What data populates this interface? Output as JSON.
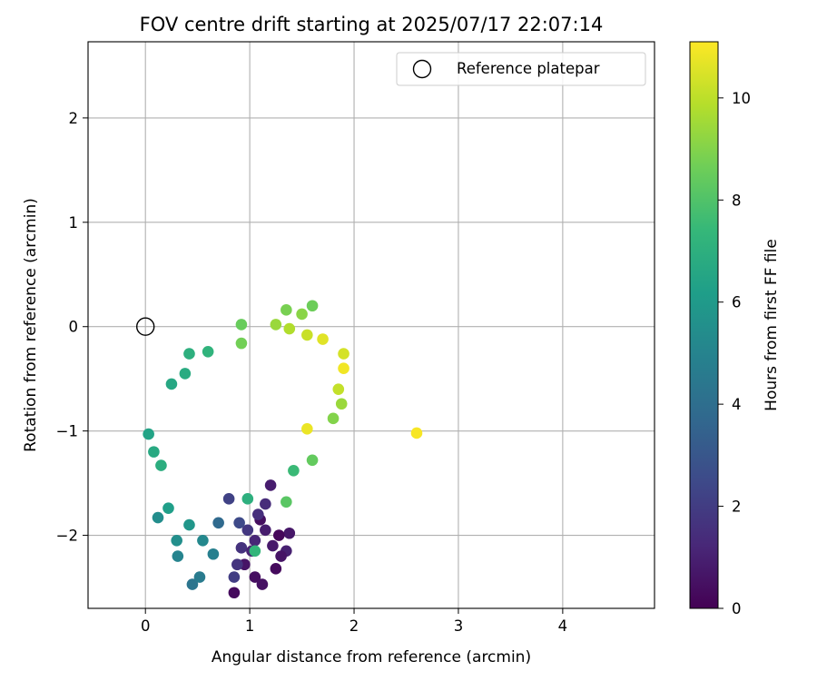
{
  "chart_data": {
    "type": "scatter",
    "title": "FOV centre drift starting at 2025/07/17 22:07:14",
    "xlabel": "Angular distance from reference (arcmin)",
    "ylabel": "Rotation from reference (arcmin)",
    "xlim": [
      -0.55,
      4.88
    ],
    "ylim": [
      -2.7,
      2.73
    ],
    "xticks": [
      0,
      1,
      2,
      3,
      4
    ],
    "yticks": [
      -2,
      -1,
      0,
      1,
      2
    ],
    "xtick_labels": [
      "0",
      "1",
      "2",
      "3",
      "4"
    ],
    "ytick_labels": [
      "−2",
      "−1",
      "0",
      "1",
      "2"
    ],
    "grid": true,
    "legend": {
      "position": "top-right",
      "entries": [
        {
          "label": "Reference platepar",
          "marker": "open-circle",
          "color": "#000000"
        }
      ]
    },
    "reference_point": {
      "x": 0,
      "y": 0
    },
    "colorbar": {
      "label": "Hours from first FF file",
      "range": [
        0,
        11.1
      ],
      "ticks": [
        0,
        2,
        4,
        6,
        8,
        10
      ],
      "tick_labels": [
        "0",
        "2",
        "4",
        "6",
        "8",
        "10"
      ],
      "colormap": "viridis",
      "colormap_stops": [
        "#440154",
        "#482878",
        "#3e4989",
        "#31688e",
        "#26828e",
        "#1f9e89",
        "#35b779",
        "#6ece58",
        "#b5de2b",
        "#fde725"
      ]
    },
    "series": [
      {
        "color_variable": "Hours from first FF file",
        "points": [
          {
            "x": 0.85,
            "y": -2.55,
            "c": 0.3
          },
          {
            "x": 0.95,
            "y": -2.28,
            "c": 0.6
          },
          {
            "x": 1.05,
            "y": -2.4,
            "c": 0.4
          },
          {
            "x": 1.12,
            "y": -2.47,
            "c": 0.5
          },
          {
            "x": 1.25,
            "y": -2.32,
            "c": 0.3
          },
          {
            "x": 1.22,
            "y": -2.1,
            "c": 0.8
          },
          {
            "x": 1.35,
            "y": -2.15,
            "c": 1.0
          },
          {
            "x": 1.38,
            "y": -1.98,
            "c": 0.7
          },
          {
            "x": 1.28,
            "y": -2.0,
            "c": 0.2
          },
          {
            "x": 1.1,
            "y": -1.85,
            "c": 0.4
          },
          {
            "x": 1.05,
            "y": -2.05,
            "c": 1.2
          },
          {
            "x": 0.92,
            "y": -2.12,
            "c": 1.6
          },
          {
            "x": 0.98,
            "y": -1.95,
            "c": 1.8
          },
          {
            "x": 1.15,
            "y": -1.7,
            "c": 1.4
          },
          {
            "x": 1.2,
            "y": -1.52,
            "c": 0.9
          },
          {
            "x": 0.8,
            "y": -1.65,
            "c": 2.2
          },
          {
            "x": 0.9,
            "y": -1.88,
            "c": 2.5
          },
          {
            "x": 0.85,
            "y": -2.4,
            "c": 2.0
          },
          {
            "x": 0.88,
            "y": -2.28,
            "c": 1.7
          },
          {
            "x": 1.02,
            "y": -2.15,
            "c": 1.1
          },
          {
            "x": 1.3,
            "y": -2.2,
            "c": 0.6
          },
          {
            "x": 1.15,
            "y": -1.95,
            "c": 0.9
          },
          {
            "x": 1.08,
            "y": -1.8,
            "c": 1.5
          },
          {
            "x": 0.7,
            "y": -1.88,
            "c": 3.8
          },
          {
            "x": 0.45,
            "y": -2.47,
            "c": 4.3
          },
          {
            "x": 0.52,
            "y": -2.4,
            "c": 4.6
          },
          {
            "x": 0.31,
            "y": -2.2,
            "c": 5.0
          },
          {
            "x": 0.65,
            "y": -2.18,
            "c": 4.8
          },
          {
            "x": 0.55,
            "y": -2.05,
            "c": 5.2
          },
          {
            "x": 0.3,
            "y": -2.05,
            "c": 5.5
          },
          {
            "x": 0.12,
            "y": -1.83,
            "c": 5.4
          },
          {
            "x": 0.42,
            "y": -1.9,
            "c": 5.8
          },
          {
            "x": 0.22,
            "y": -1.74,
            "c": 6.2
          },
          {
            "x": 1.6,
            "y": -1.28,
            "c": 8.4
          },
          {
            "x": 1.42,
            "y": -1.38,
            "c": 7.5
          },
          {
            "x": 1.35,
            "y": -1.68,
            "c": 8.2
          },
          {
            "x": 0.98,
            "y": -1.65,
            "c": 7.0
          },
          {
            "x": 1.05,
            "y": -2.15,
            "c": 7.3
          },
          {
            "x": 0.92,
            "y": 0.02,
            "c": 8.5
          },
          {
            "x": 1.35,
            "y": 0.16,
            "c": 8.8
          },
          {
            "x": 1.6,
            "y": 0.2,
            "c": 8.6
          },
          {
            "x": 1.5,
            "y": 0.12,
            "c": 9.1
          },
          {
            "x": 1.25,
            "y": 0.02,
            "c": 9.4
          },
          {
            "x": 1.38,
            "y": -0.02,
            "c": 9.8
          },
          {
            "x": 1.55,
            "y": -0.08,
            "c": 10.2
          },
          {
            "x": 1.7,
            "y": -0.12,
            "c": 10.6
          },
          {
            "x": 1.9,
            "y": -0.26,
            "c": 10.4
          },
          {
            "x": 1.9,
            "y": -0.4,
            "c": 10.9
          },
          {
            "x": 1.85,
            "y": -0.6,
            "c": 10.1
          },
          {
            "x": 1.88,
            "y": -0.74,
            "c": 9.4
          },
          {
            "x": 1.8,
            "y": -0.88,
            "c": 9.0
          },
          {
            "x": 1.55,
            "y": -0.98,
            "c": 10.8
          },
          {
            "x": 2.6,
            "y": -1.02,
            "c": 11.0
          },
          {
            "x": 0.92,
            "y": -0.16,
            "c": 8.7
          },
          {
            "x": 0.6,
            "y": -0.24,
            "c": 7.2
          },
          {
            "x": 0.42,
            "y": -0.26,
            "c": 7.0
          },
          {
            "x": 0.38,
            "y": -0.45,
            "c": 6.8
          },
          {
            "x": 0.25,
            "y": -0.55,
            "c": 6.6
          },
          {
            "x": 0.03,
            "y": -1.03,
            "c": 6.4
          },
          {
            "x": 0.08,
            "y": -1.2,
            "c": 6.7
          },
          {
            "x": 0.15,
            "y": -1.33,
            "c": 6.9
          }
        ]
      }
    ]
  }
}
